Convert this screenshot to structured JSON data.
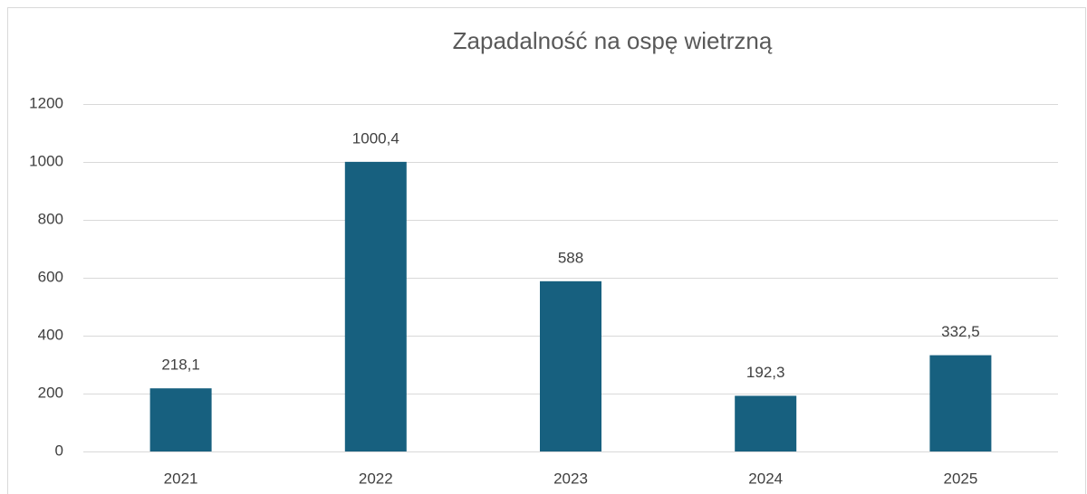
{
  "chart_data": {
    "type": "bar",
    "title": "Zapadalność na ospę wietrzną",
    "categories": [
      "2021",
      "2022",
      "2023",
      "2024",
      "2025"
    ],
    "values": [
      218.1,
      1000.4,
      588,
      192.3,
      332.5
    ],
    "value_labels": [
      "218,1",
      "1000,4",
      "588",
      "192,3",
      "332,5"
    ],
    "color": "#17607f",
    "ylim": [
      0,
      1200
    ],
    "yticks": [
      0,
      200,
      400,
      600,
      800,
      1000,
      1200
    ],
    "grid": true
  }
}
